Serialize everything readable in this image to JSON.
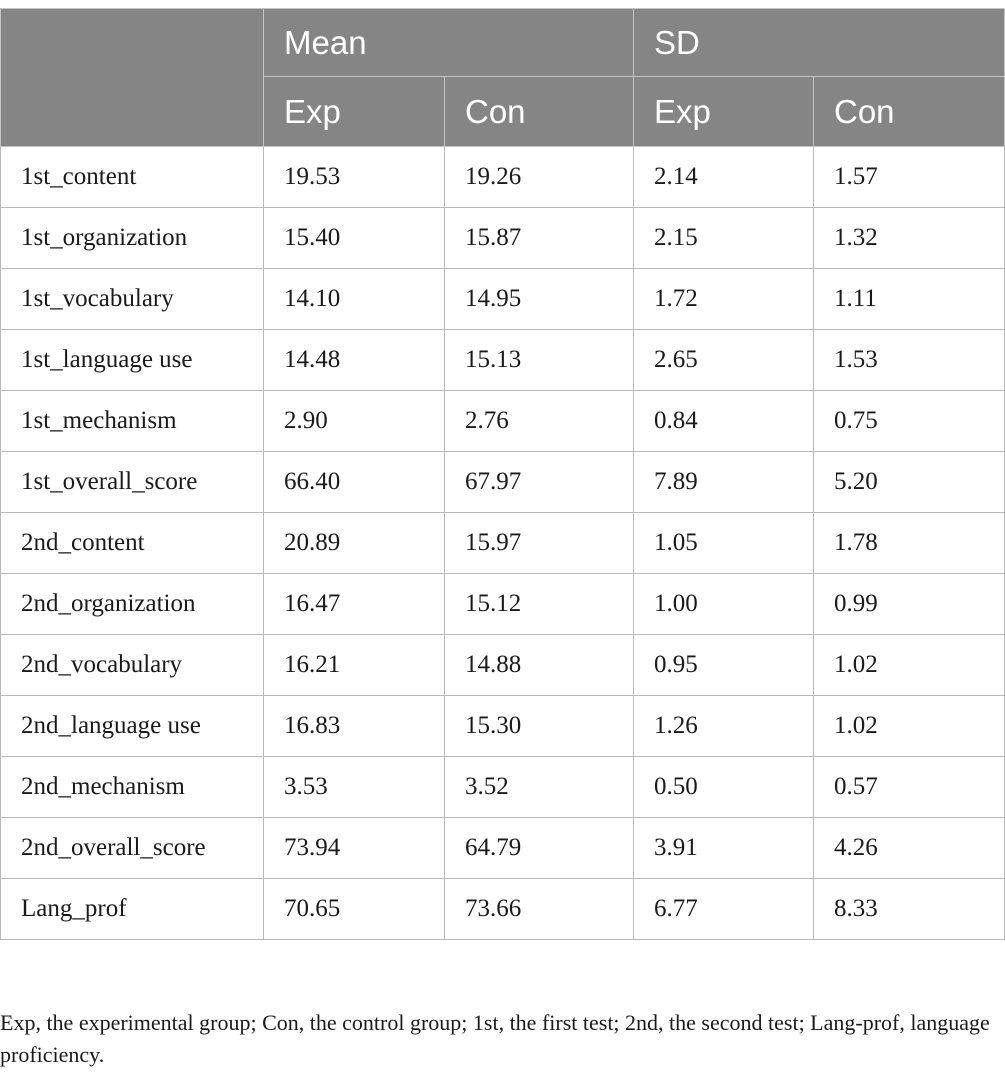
{
  "header": {
    "group_mean": "Mean",
    "group_sd": "SD",
    "sub": [
      "Exp",
      "Con",
      "Exp",
      "Con"
    ]
  },
  "rows": [
    {
      "label": "1st_content",
      "values": [
        "19.53",
        "19.26",
        "2.14",
        "1.57"
      ]
    },
    {
      "label": "1st_organization",
      "values": [
        "15.40",
        "15.87",
        "2.15",
        "1.32"
      ]
    },
    {
      "label": "1st_vocabulary",
      "values": [
        "14.10",
        "14.95",
        "1.72",
        "1.11"
      ]
    },
    {
      "label": "1st_language use",
      "values": [
        "14.48",
        "15.13",
        "2.65",
        "1.53"
      ]
    },
    {
      "label": "1st_mechanism",
      "values": [
        "2.90",
        "2.76",
        "0.84",
        "0.75"
      ]
    },
    {
      "label": "1st_overall_score",
      "values": [
        "66.40",
        "67.97",
        "7.89",
        "5.20"
      ]
    },
    {
      "label": "2nd_content",
      "values": [
        "20.89",
        "15.97",
        "1.05",
        "1.78"
      ]
    },
    {
      "label": "2nd_organization",
      "values": [
        "16.47",
        "15.12",
        "1.00",
        "0.99"
      ]
    },
    {
      "label": "2nd_vocabulary",
      "values": [
        "16.21",
        "14.88",
        "0.95",
        "1.02"
      ]
    },
    {
      "label": "2nd_language use",
      "values": [
        "16.83",
        "15.30",
        "1.26",
        "1.02"
      ]
    },
    {
      "label": "2nd_mechanism",
      "values": [
        "3.53",
        "3.52",
        "0.50",
        "0.57"
      ]
    },
    {
      "label": "2nd_overall_score",
      "values": [
        "73.94",
        "64.79",
        "3.91",
        "4.26"
      ]
    },
    {
      "label": "Lang_prof",
      "values": [
        "70.65",
        "73.66",
        "6.77",
        "8.33"
      ]
    }
  ],
  "footnote": "Exp, the experimental group; Con, the control group; 1st, the first test; 2nd, the second test; Lang-prof, language proficiency."
}
